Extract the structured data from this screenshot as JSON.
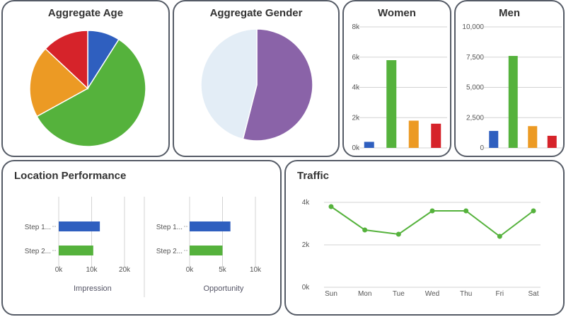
{
  "panels": {
    "age_title": "Aggregate Age",
    "gender_title": "Aggregate Gender",
    "women_title": "Women",
    "men_title": "Men",
    "location_title": "Location Performance",
    "traffic_title": "Traffic"
  },
  "colors": {
    "blue": "#2f5fbf",
    "green": "#55b23c",
    "orange": "#ec9a24",
    "red": "#d6232a",
    "purple": "#8a63a8",
    "light": "#e3edf6",
    "grid": "#d3d3d3"
  },
  "chart_data": [
    {
      "id": "age",
      "type": "pie",
      "title": "Aggregate Age",
      "values": [
        9,
        58,
        20,
        13
      ],
      "colors": [
        "#2f5fbf",
        "#55b23c",
        "#ec9a24",
        "#d6232a"
      ]
    },
    {
      "id": "gender",
      "type": "pie",
      "title": "Aggregate Gender",
      "values": [
        54,
        46
      ],
      "colors": [
        "#8a63a8",
        "#e3edf6"
      ]
    },
    {
      "id": "women",
      "type": "bar",
      "title": "Women",
      "values": [
        400,
        5800,
        1800,
        1600
      ],
      "colors": [
        "#2f5fbf",
        "#55b23c",
        "#ec9a24",
        "#d6232a"
      ],
      "ylim": [
        0,
        8000
      ],
      "yticks": [
        0,
        2000,
        4000,
        6000,
        8000
      ],
      "ytick_labels": [
        "0k",
        "2k",
        "4k",
        "6k",
        "8k"
      ],
      "grid": true
    },
    {
      "id": "men",
      "type": "bar",
      "title": "Men",
      "values": [
        1400,
        7600,
        1800,
        1000
      ],
      "colors": [
        "#2f5fbf",
        "#55b23c",
        "#ec9a24",
        "#d6232a"
      ],
      "ylim": [
        0,
        10000
      ],
      "yticks": [
        0,
        2500,
        5000,
        7500,
        10000
      ],
      "ytick_labels": [
        "0",
        "2,500",
        "5,000",
        "7,500",
        "10,000"
      ],
      "grid": true
    },
    {
      "id": "impression",
      "type": "bar",
      "orientation": "horizontal",
      "categories": [
        "Step 1...",
        "Step 2..."
      ],
      "values": [
        12500,
        10500
      ],
      "colors": [
        "#2f5fbf",
        "#55b23c"
      ],
      "xlim": [
        0,
        20000
      ],
      "xticks": [
        0,
        10000,
        20000
      ],
      "xtick_labels": [
        "0k",
        "10k",
        "20k"
      ],
      "xlabel": "Impression"
    },
    {
      "id": "opportunity",
      "type": "bar",
      "orientation": "horizontal",
      "categories": [
        "Step 1...",
        "Step 2..."
      ],
      "values": [
        6200,
        5000
      ],
      "colors": [
        "#2f5fbf",
        "#55b23c"
      ],
      "xlim": [
        0,
        10000
      ],
      "xticks": [
        0,
        5000,
        10000
      ],
      "xtick_labels": [
        "0k",
        "5k",
        "10k"
      ],
      "xlabel": "Opportunity"
    },
    {
      "id": "traffic",
      "type": "line",
      "title": "Traffic",
      "categories": [
        "Sun",
        "Mon",
        "Tue",
        "Wed",
        "Thu",
        "Fri",
        "Sat"
      ],
      "values": [
        3800,
        2700,
        2500,
        3600,
        3600,
        2400,
        3600
      ],
      "color": "#55b23c",
      "ylim": [
        0,
        4000
      ],
      "yticks": [
        0,
        2000,
        4000
      ],
      "ytick_labels": [
        "0k",
        "2k",
        "4k"
      ],
      "grid": true
    }
  ]
}
